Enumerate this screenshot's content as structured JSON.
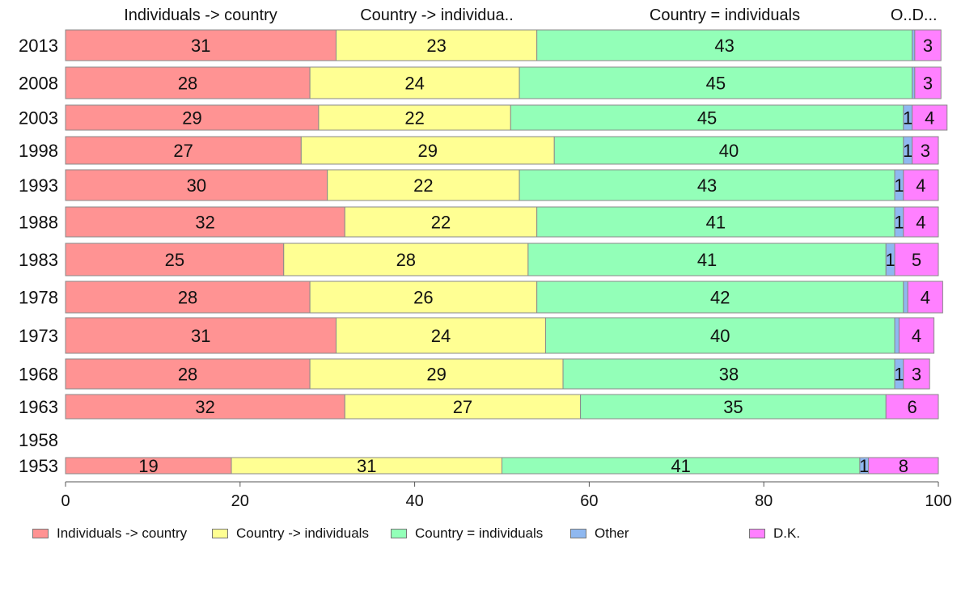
{
  "chart_data": {
    "type": "bar",
    "orientation": "horizontal",
    "stacked": true,
    "categories": [
      "2013",
      "2008",
      "2003",
      "1998",
      "1993",
      "1988",
      "1983",
      "1978",
      "1973",
      "1968",
      "1963",
      "1958",
      "1953"
    ],
    "series": [
      {
        "name": "Individuals -> country",
        "color": "#ff9393",
        "values": [
          31,
          28,
          29,
          27,
          30,
          32,
          25,
          28,
          31,
          28,
          32,
          null,
          19
        ]
      },
      {
        "name": "Country -> individuals",
        "color": "#ffff93",
        "values": [
          23,
          24,
          22,
          29,
          22,
          22,
          28,
          26,
          24,
          29,
          27,
          null,
          31
        ]
      },
      {
        "name": "Country = individuals",
        "color": "#93ffb8",
        "values": [
          43,
          45,
          45,
          40,
          43,
          41,
          41,
          42,
          40,
          38,
          35,
          null,
          41
        ]
      },
      {
        "name": "Other",
        "color": "#8fb8f0",
        "values": [
          0.3,
          0.3,
          1,
          1,
          1,
          1,
          1,
          0.5,
          0.5,
          1,
          0,
          null,
          1
        ]
      },
      {
        "name": "D.K.",
        "color": "#ff80ff",
        "values": [
          3,
          3,
          4,
          3,
          4,
          4,
          5,
          4,
          4,
          3,
          6,
          null,
          8
        ]
      }
    ],
    "top_labels": [
      "Individuals -> country",
      "Country -> individua..",
      "Country = individuals",
      "O...",
      "D..."
    ],
    "xlim": [
      0,
      100
    ],
    "xticks": [
      0,
      20,
      40,
      60,
      80,
      100
    ],
    "xlabel": "",
    "ylabel": "",
    "grid": false,
    "legend_position": "bottom"
  }
}
